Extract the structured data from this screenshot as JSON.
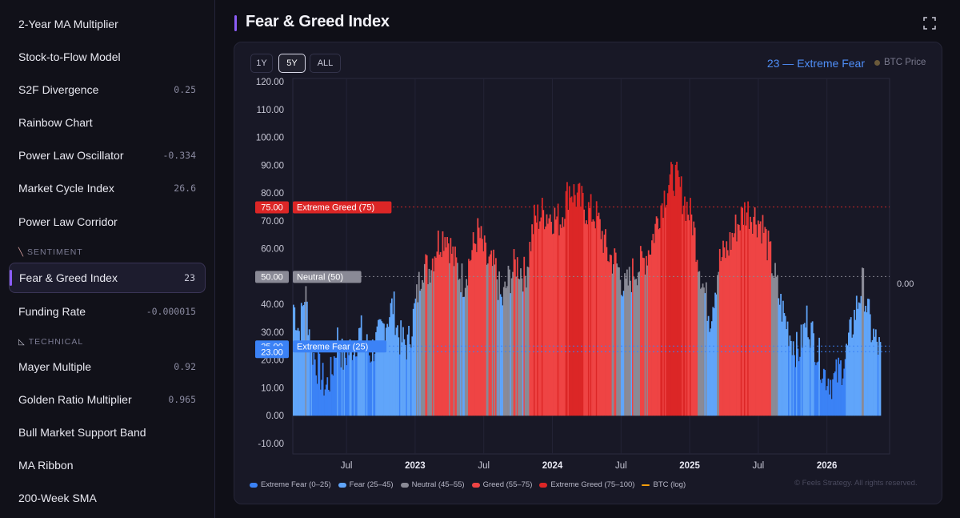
{
  "sidebar": {
    "items_top": [
      {
        "label": "2-Year MA Multiplier",
        "value": ""
      },
      {
        "label": "Stock-to-Flow Model",
        "value": ""
      },
      {
        "label": "S2F Divergence",
        "value": "0.25"
      },
      {
        "label": "Rainbow Chart",
        "value": ""
      },
      {
        "label": "Power Law Oscillator",
        "value": "-0.334"
      },
      {
        "label": "Market Cycle Index",
        "value": "26.6"
      },
      {
        "label": "Power Law Corridor",
        "value": ""
      }
    ],
    "section_sentiment": "SENTIMENT",
    "items_sentiment": [
      {
        "label": "Fear & Greed Index",
        "value": "23"
      },
      {
        "label": "Funding Rate",
        "value": "-0.000015"
      }
    ],
    "section_technical": "TECHNICAL",
    "items_technical": [
      {
        "label": "Mayer Multiple",
        "value": "0.92"
      },
      {
        "label": "Golden Ratio Multiplier",
        "value": "0.965"
      },
      {
        "label": "Bull Market Support Band",
        "value": ""
      },
      {
        "label": "MA Ribbon",
        "value": ""
      },
      {
        "label": "200-Week SMA",
        "value": ""
      }
    ]
  },
  "header": {
    "title": "Fear & Greed Index"
  },
  "controls": {
    "ranges": [
      "1Y",
      "5Y",
      "ALL"
    ],
    "active_range": "5Y",
    "current_label": "23 — Extreme Fear",
    "btc_price_label": "BTC Price"
  },
  "right_axis_value": "0.00",
  "legend": [
    {
      "label": "Extreme Fear (0–25)",
      "color": "#3b82f6"
    },
    {
      "label": "Fear (25–45)",
      "color": "#60a5fa"
    },
    {
      "label": "Neutral (45–55)",
      "color": "#8a8a96"
    },
    {
      "label": "Greed (55–75)",
      "color": "#ef4444"
    },
    {
      "label": "Extreme Greed (75–100)",
      "color": "#dc2626"
    },
    {
      "label": "BTC (log)",
      "color": "#f59e0b"
    }
  ],
  "copyright": "© Feels Strategy. All rights reserved.",
  "colors": {
    "extreme_fear": "#3b82f6",
    "fear": "#60a5fa",
    "neutral": "#8a8a96",
    "greed": "#ef4444",
    "extreme_greed": "#dc2626",
    "accent": "#8b5cf6"
  },
  "chart_data": {
    "type": "bar",
    "title": "",
    "ylim": [
      -10,
      120
    ],
    "y_ticks": [
      "120.00",
      "110.00",
      "100.00",
      "90.00",
      "80.00",
      "70.00",
      "60.00",
      "50.00",
      "40.00",
      "30.00",
      "20.00",
      "10.00",
      "0.00",
      "-10.00"
    ],
    "x_ticks": [
      {
        "label": "Jul",
        "bold": false,
        "t": 0.09
      },
      {
        "label": "2023",
        "bold": true,
        "t": 0.205
      },
      {
        "label": "Jul",
        "bold": false,
        "t": 0.32
      },
      {
        "label": "2024",
        "bold": true,
        "t": 0.435
      },
      {
        "label": "Jul",
        "bold": false,
        "t": 0.55
      },
      {
        "label": "2025",
        "bold": true,
        "t": 0.665
      },
      {
        "label": "Jul",
        "bold": false,
        "t": 0.78
      },
      {
        "label": "2026",
        "bold": true,
        "t": 0.895
      }
    ],
    "reference_lines": [
      {
        "value": 75,
        "tag": "75.00",
        "label": "Extreme Greed (75)",
        "color": "#dc2626"
      },
      {
        "value": 50,
        "tag": "50.00",
        "label": "Neutral (50)",
        "color": "#8a8a96"
      },
      {
        "value": 25,
        "tag": "25.00",
        "label": "Extreme Fear (25)",
        "color": "#3b82f6"
      }
    ],
    "current": {
      "value": 23,
      "tag": "23.00"
    },
    "x_span": [
      "2022-03",
      "2026-05"
    ],
    "keyframes": [
      [
        0.0,
        40
      ],
      [
        0.01,
        30
      ],
      [
        0.02,
        45
      ],
      [
        0.03,
        25
      ],
      [
        0.04,
        18
      ],
      [
        0.055,
        10
      ],
      [
        0.065,
        15
      ],
      [
        0.075,
        28
      ],
      [
        0.085,
        20
      ],
      [
        0.1,
        25
      ],
      [
        0.115,
        30
      ],
      [
        0.13,
        22
      ],
      [
        0.145,
        28
      ],
      [
        0.16,
        35
      ],
      [
        0.17,
        40
      ],
      [
        0.18,
        28
      ],
      [
        0.195,
        25
      ],
      [
        0.21,
        42
      ],
      [
        0.22,
        55
      ],
      [
        0.23,
        52
      ],
      [
        0.245,
        62
      ],
      [
        0.26,
        66
      ],
      [
        0.275,
        55
      ],
      [
        0.29,
        48
      ],
      [
        0.3,
        56
      ],
      [
        0.315,
        66
      ],
      [
        0.33,
        55
      ],
      [
        0.345,
        52
      ],
      [
        0.355,
        40
      ],
      [
        0.365,
        48
      ],
      [
        0.38,
        55
      ],
      [
        0.395,
        50
      ],
      [
        0.41,
        70
      ],
      [
        0.425,
        73
      ],
      [
        0.44,
        72
      ],
      [
        0.455,
        70
      ],
      [
        0.47,
        82
      ],
      [
        0.485,
        78
      ],
      [
        0.5,
        74
      ],
      [
        0.515,
        72
      ],
      [
        0.525,
        66
      ],
      [
        0.535,
        58
      ],
      [
        0.55,
        55
      ],
      [
        0.565,
        45
      ],
      [
        0.58,
        52
      ],
      [
        0.595,
        55
      ],
      [
        0.61,
        62
      ],
      [
        0.625,
        75
      ],
      [
        0.64,
        84
      ],
      [
        0.65,
        86
      ],
      [
        0.665,
        78
      ],
      [
        0.68,
        70
      ],
      [
        0.695,
        50
      ],
      [
        0.71,
        35
      ],
      [
        0.725,
        55
      ],
      [
        0.74,
        60
      ],
      [
        0.755,
        68
      ],
      [
        0.77,
        74
      ],
      [
        0.785,
        72
      ],
      [
        0.8,
        68
      ],
      [
        0.815,
        55
      ],
      [
        0.83,
        40
      ],
      [
        0.845,
        30
      ],
      [
        0.86,
        22
      ],
      [
        0.875,
        35
      ],
      [
        0.89,
        25
      ],
      [
        0.905,
        15
      ],
      [
        0.92,
        12
      ],
      [
        0.94,
        20
      ],
      [
        0.955,
        35
      ],
      [
        0.97,
        48
      ],
      [
        0.985,
        30
      ],
      [
        1.0,
        23
      ]
    ]
  }
}
